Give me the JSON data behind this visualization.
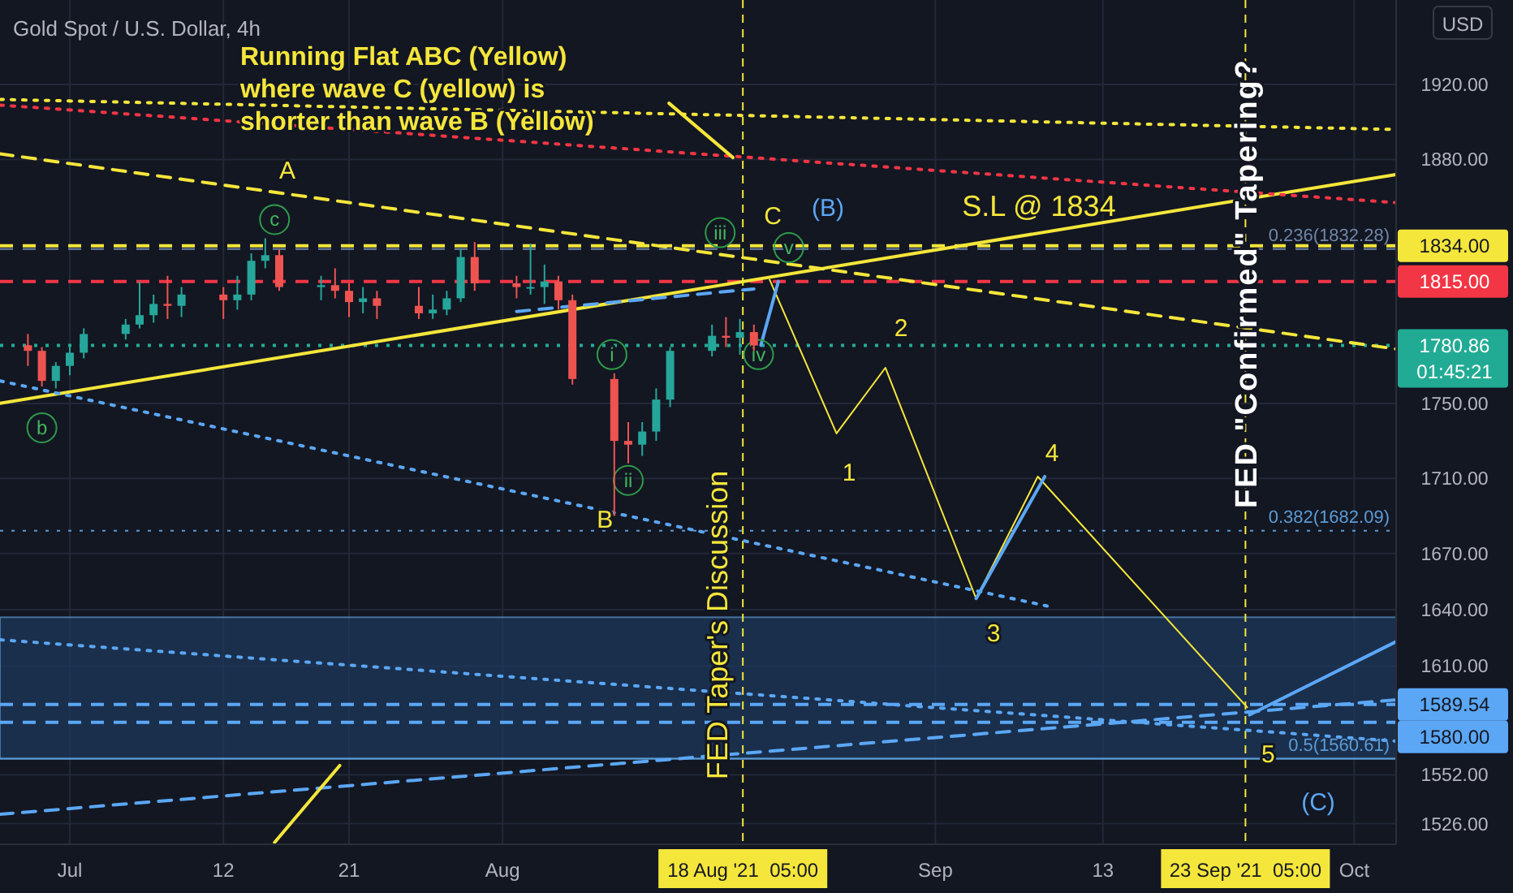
{
  "chart_data": {
    "type": "candlestick",
    "title": "Gold Spot / U.S. Dollar, 4h",
    "ylabel": "USD",
    "x": [
      "2021-06-28",
      "2021-06-29",
      "2021-06-30",
      "2021-07-01",
      "2021-07-02",
      "2021-07-05",
      "2021-07-06",
      "2021-07-07",
      "2021-07-08",
      "2021-07-09",
      "2021-07-12",
      "2021-07-13",
      "2021-07-14",
      "2021-07-15",
      "2021-07-16",
      "2021-07-19",
      "2021-07-20",
      "2021-07-21",
      "2021-07-22",
      "2021-07-23",
      "2021-07-26",
      "2021-07-27",
      "2021-07-28",
      "2021-07-29",
      "2021-07-30",
      "2021-08-02",
      "2021-08-03",
      "2021-08-04",
      "2021-08-05",
      "2021-08-06",
      "2021-08-09",
      "2021-08-10",
      "2021-08-11",
      "2021-08-12",
      "2021-08-13",
      "2021-08-16",
      "2021-08-17",
      "2021-08-18",
      "2021-08-19"
    ],
    "ohlc": [
      [
        1781,
        1787,
        1770,
        1778
      ],
      [
        1778,
        1780,
        1759,
        1762
      ],
      [
        1762,
        1772,
        1758,
        1770
      ],
      [
        1770,
        1780,
        1765,
        1777
      ],
      [
        1777,
        1790,
        1774,
        1787
      ],
      [
        1787,
        1795,
        1784,
        1792
      ],
      [
        1792,
        1815,
        1790,
        1797
      ],
      [
        1797,
        1808,
        1793,
        1803
      ],
      [
        1803,
        1818,
        1795,
        1802
      ],
      [
        1802,
        1812,
        1796,
        1808
      ],
      [
        1808,
        1812,
        1795,
        1805
      ],
      [
        1805,
        1818,
        1800,
        1808
      ],
      [
        1808,
        1830,
        1805,
        1826
      ],
      [
        1826,
        1838,
        1822,
        1829
      ],
      [
        1829,
        1832,
        1810,
        1812
      ],
      [
        1812,
        1818,
        1805,
        1813
      ],
      [
        1813,
        1822,
        1806,
        1810
      ],
      [
        1810,
        1814,
        1796,
        1804
      ],
      [
        1804,
        1812,
        1798,
        1806
      ],
      [
        1806,
        1810,
        1795,
        1802
      ],
      [
        1802,
        1812,
        1795,
        1798
      ],
      [
        1798,
        1808,
        1795,
        1800
      ],
      [
        1800,
        1810,
        1797,
        1806
      ],
      [
        1806,
        1832,
        1804,
        1828
      ],
      [
        1828,
        1836,
        1810,
        1814
      ],
      [
        1814,
        1818,
        1806,
        1812
      ],
      [
        1812,
        1835,
        1808,
        1812
      ],
      [
        1812,
        1824,
        1803,
        1815
      ],
      [
        1815,
        1818,
        1800,
        1805
      ],
      [
        1805,
        1808,
        1760,
        1763
      ],
      [
        1763,
        1766,
        1690,
        1730
      ],
      [
        1730,
        1740,
        1718,
        1728
      ],
      [
        1728,
        1740,
        1722,
        1735
      ],
      [
        1735,
        1758,
        1730,
        1752
      ],
      [
        1752,
        1780,
        1748,
        1778
      ],
      [
        1778,
        1792,
        1775,
        1786
      ],
      [
        1786,
        1796,
        1780,
        1785
      ],
      [
        1785,
        1795,
        1776,
        1788
      ],
      [
        1788,
        1792,
        1778,
        1780.86
      ]
    ],
    "series": [
      {
        "type": "line",
        "color": "#f5e63b",
        "line_style": "solid",
        "x": [
          "2021-06-26",
          "2021-10-04"
        ],
        "values": [
          1750,
          1872
        ]
      },
      {
        "type": "line",
        "color": "#f5e63b",
        "line_style": "dashed",
        "x": [
          "2021-06-26",
          "2021-10-04"
        ],
        "values": [
          1883,
          1779
        ]
      },
      {
        "type": "line",
        "color": "#f23645",
        "line_style": "dotted",
        "x": [
          "2021-06-26",
          "2021-10-04"
        ],
        "values": [
          1909,
          1857
        ]
      },
      {
        "type": "line",
        "color": "#f5e63b",
        "line_style": "dotted",
        "x": [
          "2021-06-26",
          "2021-10-04"
        ],
        "values": [
          1912,
          1896
        ]
      },
      {
        "type": "line",
        "color": "#5ba7f5",
        "line_style": "dotted",
        "x": [
          "2021-06-26",
          "2021-09-09"
        ],
        "values": [
          1762,
          1642
        ]
      },
      {
        "type": "line",
        "color": "#5ba7f5",
        "line_style": "dotted",
        "x": [
          "2021-06-26",
          "2021-10-04"
        ],
        "values": [
          1624,
          1570
        ]
      },
      {
        "type": "line",
        "color": "#5ba7f5",
        "line_style": "dashed",
        "x": [
          "2021-06-26",
          "2021-10-04"
        ],
        "values": [
          1531,
          1592
        ]
      },
      {
        "type": "line",
        "color": "#5ba7f5",
        "line_style": "dashed",
        "x": [
          "2021-08-02",
          "2021-08-19"
        ],
        "values": [
          1799,
          1811
        ]
      },
      {
        "type": "line",
        "color": "#f5e63b",
        "line_style": "solid",
        "x": [
          "2021-08-20T03:00",
          "2021-08-24T22:00",
          "2021-08-28T10:00",
          "2021-09-03T22:00",
          "2021-09-08T08:00",
          "2021-09-23T08:00"
        ],
        "values": [
          1816,
          1734,
          1769,
          1646,
          1711,
          1588
        ]
      },
      {
        "type": "line",
        "color": "#5ba7f5",
        "line_style": "solid",
        "x": [
          "2021-08-19T12:00",
          "2021-08-20T18:00"
        ],
        "values": [
          1781,
          1815
        ]
      },
      {
        "type": "line",
        "color": "#5ba7f5",
        "line_style": "solid",
        "x": [
          "2021-09-03T22:00",
          "2021-09-08T20:00"
        ],
        "values": [
          1646,
          1711
        ]
      },
      {
        "type": "line",
        "color": "#5ba7f5",
        "line_style": "solid",
        "x": [
          "2021-09-23T12:00",
          "2021-10-04"
        ],
        "values": [
          1584,
          1623
        ]
      },
      {
        "type": "line",
        "color": "#f5e63b",
        "line_style": "solid",
        "x": [
          "2021-07-15T16:00",
          "2021-07-20T08:00"
        ],
        "values": [
          1516,
          1557
        ]
      },
      {
        "type": "line",
        "color": "#f5e63b",
        "line_style": "solid",
        "x": [
          "2021-08-12T22:00",
          "2021-08-17T12:00"
        ],
        "values": [
          1910,
          1881
        ]
      }
    ],
    "xlim": [
      "2021-06-26",
      "2021-10-04"
    ],
    "xticks": [
      {
        "value": "2021-07-01",
        "label": "Jul"
      },
      {
        "value": "2021-07-12",
        "label": "12"
      },
      {
        "value": "2021-07-21",
        "label": "21"
      },
      {
        "value": "2021-08-01",
        "label": "Aug"
      },
      {
        "value": "2021-09-01",
        "label": "Sep"
      },
      {
        "value": "2021-09-13",
        "label": "13"
      },
      {
        "value": "2021-10-01",
        "label": "Oct"
      }
    ],
    "ylim": [
      1515,
      1965
    ],
    "yticks": [
      {
        "value": 1526,
        "label": "1526.00"
      },
      {
        "value": 1552,
        "label": "1552.00"
      },
      {
        "value": 1610,
        "label": "1610.00"
      },
      {
        "value": 1640,
        "label": "1640.00"
      },
      {
        "value": 1670,
        "label": "1670.00"
      },
      {
        "value": 1710,
        "label": "1710.00"
      },
      {
        "value": 1750,
        "label": "1750.00"
      },
      {
        "value": 1880,
        "label": "1880.00"
      },
      {
        "value": 1920,
        "label": "1920.00"
      }
    ],
    "grid": true,
    "ref_lines": [
      {
        "axis": "y",
        "value": 1834,
        "label": "1834.00",
        "color": "#f5e63b",
        "line_style": "dashed"
      },
      {
        "axis": "y",
        "value": 1815,
        "label": "1815.00",
        "color": "#f23645",
        "line_style": "dashed"
      },
      {
        "axis": "y",
        "value": 1780.86,
        "label": "1780.86 01:45:21",
        "color": "#22ab94",
        "line_style": "dotted"
      },
      {
        "axis": "y",
        "value": 1832.28,
        "label": "0.236(1832.28)",
        "color": "#6f86a8",
        "line_style": "dashed"
      },
      {
        "axis": "y",
        "value": 1682.09,
        "label": "0.382(1682.09)",
        "color": "#5b9bd5",
        "line_style": "dotted"
      },
      {
        "axis": "y",
        "value": 1560.61,
        "label": "0.5(1560.61)",
        "color": "#5b9bd5",
        "line_style": "solid"
      },
      {
        "axis": "y",
        "value": 1589.54,
        "label": "1589.54",
        "color": "#5ba7f5",
        "line_style": "dashed"
      },
      {
        "axis": "y",
        "value": 1580,
        "label": "1580.00",
        "color": "#5ba7f5",
        "line_style": "dashed"
      },
      {
        "axis": "x",
        "value": "2021-08-18T05:00",
        "label": "18 Aug '21  05:00",
        "color": "#f5e63b",
        "line_style": "dashed"
      },
      {
        "axis": "x",
        "value": "2021-09-23T05:00",
        "label": "23 Sep '21  05:00",
        "color": "#f5e63b",
        "line_style": "dashed"
      }
    ],
    "bands": [
      {
        "axis": "y",
        "from": 1560.61,
        "to": 1636,
        "color": "#1e3a5f"
      }
    ],
    "annotations": [
      "A",
      {
        "text": "c",
        "x": "2021-07-15T16:00",
        "y": 1848
      },
      {
        "text": "b",
        "x": "2021-06-29",
        "y": 1737
      },
      {
        "text": "B",
        "x": "2021-08-08T08:00",
        "y": 1688
      },
      {
        "text": "i",
        "x": "2021-08-08T20:00",
        "y": 1776
      },
      {
        "text": "ii",
        "x": "2021-08-10",
        "y": 1709
      },
      {
        "text": "iii",
        "x": "2021-08-16T14:00",
        "y": 1841
      },
      {
        "text": "iv",
        "x": "2021-08-19T08:00",
        "y": 1776
      },
      {
        "text": "v",
        "x": "2021-08-21T12:00",
        "y": 1833
      },
      "C",
      "(B)",
      "1",
      "2",
      "3",
      "4",
      {
        "text": "5",
        "x": "2021-09-24T20:00",
        "y": 1563
      },
      "(C)",
      "S.L @ 1834",
      "Running Flat ABC (Yellow) where wave C (yellow) is shorter than wave B (Yellow)",
      "FED Taper's Discussion",
      {
        "text": "FED \"Confirmed\" Tapering?",
        "x": "2021-09-24",
        "y": 1814
      }
    ]
  }
}
